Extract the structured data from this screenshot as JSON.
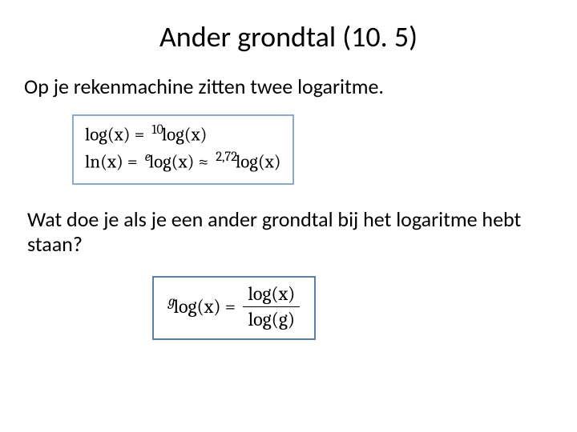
{
  "slide": {
    "title": "Ander grondtal (10. 5)",
    "intro": "Op je rekenmachine zitten twee logaritme.",
    "formula_box_1": {
      "border_color": "#8ba9c9",
      "lines": [
        {
          "lhs": "log(x)",
          "pre_sup": "10",
          "rhs": "log(x)"
        },
        {
          "lhs": "ln(x)",
          "pre_sup": "e",
          "mid": "log(x)",
          "approx_sup": "2,72",
          "rhs": "log(x)"
        }
      ]
    },
    "question": "Wat doe je als je een ander grondtal bij het logaritme hebt staan?",
    "formula_box_2": {
      "border_color": "#5a7fa8",
      "lhs_pre_sup": "g",
      "lhs": "log(x)",
      "numerator": "log(x)",
      "denominator": "log(g)"
    },
    "style": {
      "background_color": "#ffffff",
      "text_color": "#000000",
      "title_fontsize": 36,
      "body_fontsize": 26,
      "formula_fontsize": 23,
      "font_family_body": "Calibri",
      "font_family_math": "Cambria"
    }
  }
}
